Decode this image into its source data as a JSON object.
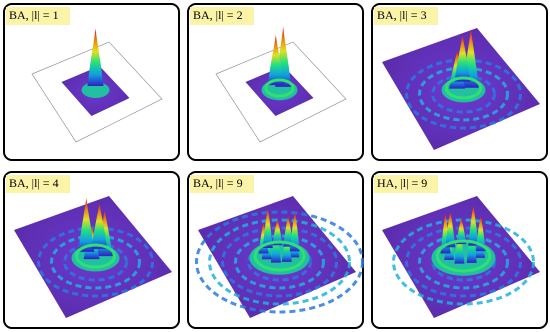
{
  "panels": [
    {
      "label": "BA, |l| = 1"
    },
    {
      "label": "BA, |l| = 2"
    },
    {
      "label": "BA, |l| = 3"
    },
    {
      "label": "BA, |l| = 4"
    },
    {
      "label": "BA, |l| = 9"
    },
    {
      "label": "HA, |l| = 9"
    }
  ]
}
